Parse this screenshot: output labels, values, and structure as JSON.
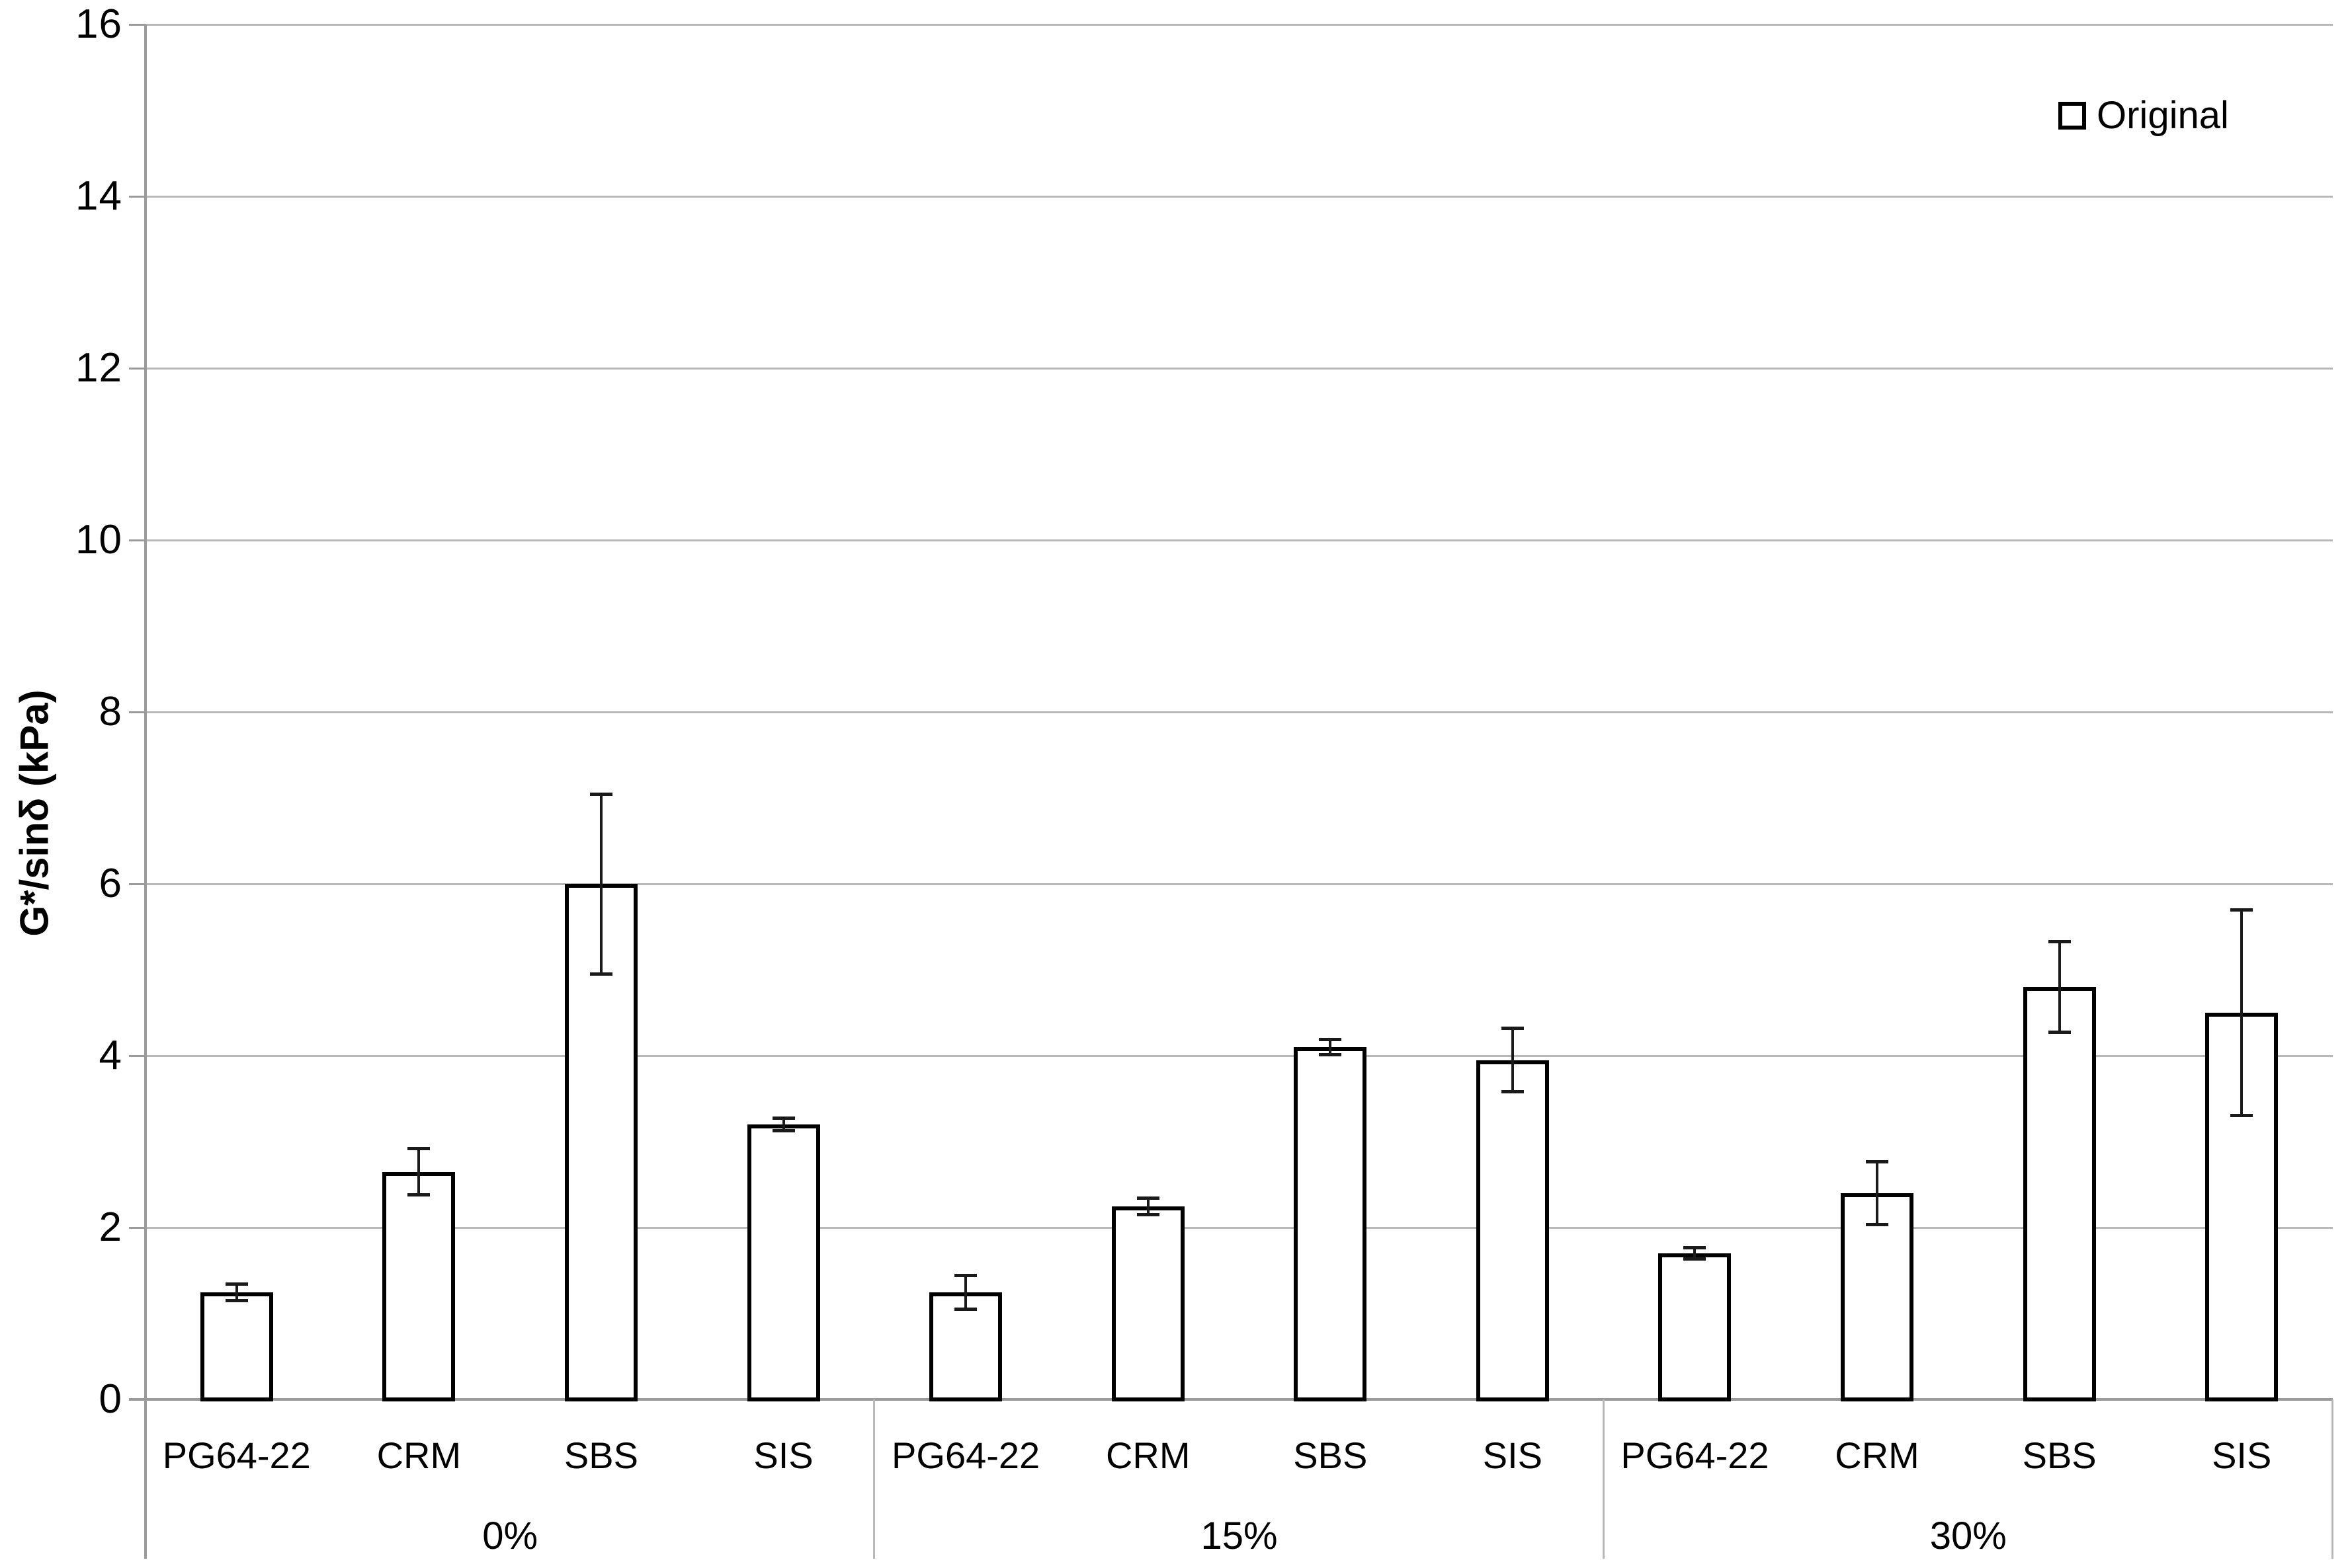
{
  "chart_data": {
    "type": "bar",
    "title": "",
    "xlabel": "",
    "ylabel": "G*/sinδ (kPa)",
    "ylim": [
      0,
      16
    ],
    "yticks": [
      0,
      2,
      4,
      6,
      8,
      10,
      12,
      14,
      16
    ],
    "grid": true,
    "legend_position": "top-right",
    "series_name": "Original",
    "bar_fill": "#ffffff",
    "bar_border": "#000000",
    "gridline_color": "#b8b8b8",
    "error_bars": true,
    "groups": [
      {
        "label": "0%",
        "categories": [
          "PG64-22",
          "CRM",
          "SBS",
          "SIS"
        ],
        "values": [
          1.25,
          2.65,
          6.0,
          3.2
        ],
        "errors": [
          0.1,
          0.27,
          1.05,
          0.08
        ]
      },
      {
        "label": "15%",
        "categories": [
          "PG64-22",
          "CRM",
          "SBS",
          "SIS"
        ],
        "values": [
          1.25,
          2.25,
          4.1,
          3.95
        ],
        "errors": [
          0.2,
          0.1,
          0.09,
          0.37
        ]
      },
      {
        "label": "30%",
        "categories": [
          "PG64-22",
          "CRM",
          "SBS",
          "SIS"
        ],
        "values": [
          1.7,
          2.4,
          4.8,
          4.5
        ],
        "errors": [
          0.07,
          0.37,
          0.53,
          1.2
        ]
      }
    ]
  },
  "legend": {
    "label": "Original"
  },
  "colors": {
    "bar_fill": "#ffffff",
    "bar_border": "#000000",
    "gridline": "#b8b8b8",
    "axis": "#9b9b9b",
    "text": "#000000"
  }
}
